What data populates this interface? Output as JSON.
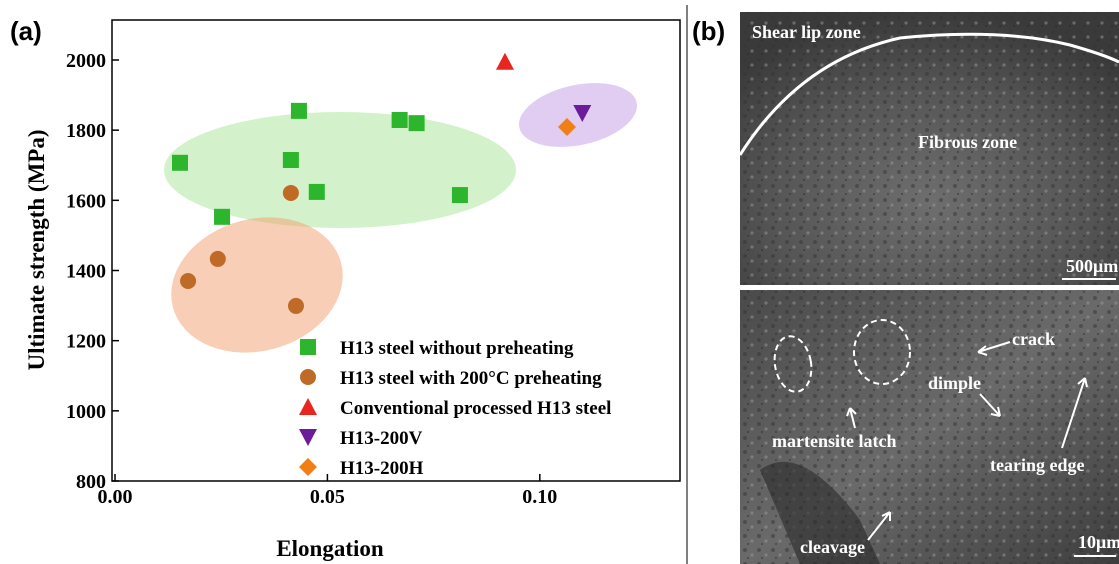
{
  "chart_data": {
    "type": "scatter",
    "panel_label": "(a)",
    "xlabel": "Elongation",
    "ylabel": "Ultimate strength (MPa)",
    "xlim": [
      0,
      0.133
    ],
    "ylim": [
      800,
      2114
    ],
    "xticks": [
      {
        "value": 0,
        "label": "0.00"
      },
      {
        "value": 0.05,
        "label": "0.05"
      },
      {
        "value": 0.1,
        "label": "0.10"
      }
    ],
    "yticks": [
      800,
      1000,
      1200,
      1400,
      1600,
      1800,
      2000
    ],
    "series": [
      {
        "name": "H13 steel without preheating",
        "color": "#2db52d",
        "marker": "square",
        "x": [
          0.0153,
          0.0252,
          0.0414,
          0.0433,
          0.0475,
          0.067,
          0.071,
          0.0812
        ],
        "values": [
          1707,
          1553,
          1715,
          1855,
          1624,
          1829,
          1820,
          1615
        ]
      },
      {
        "name": "H13 steel with 200°C preheating",
        "color": "#c06a28",
        "marker": "circle",
        "x": [
          0.0172,
          0.0242,
          0.0414,
          0.0426
        ],
        "values": [
          1370,
          1433,
          1621,
          1299
        ]
      },
      {
        "name": "Conventional processed H13 steel",
        "color": "#e8261f",
        "marker": "triangle",
        "x": [
          0.0918
        ],
        "values": [
          1995
        ]
      },
      {
        "name": "H13-200V",
        "color": "#6a1c9a",
        "marker": "triangle-down",
        "x": [
          0.11
        ],
        "values": [
          1849
        ]
      },
      {
        "name": "H13-200H",
        "color": "#f07f16",
        "marker": "diamond",
        "x": [
          0.1064
        ],
        "values": [
          1809
        ]
      }
    ]
  },
  "image_panel": {
    "label": "(b)",
    "top_annotations": [
      "Shear lip zone",
      "Fibrous zone",
      "500μm"
    ],
    "bottom_annotations": [
      "crack",
      "dimple",
      "martensite latch",
      "tearing edge",
      "cleavage",
      "10μm"
    ]
  }
}
